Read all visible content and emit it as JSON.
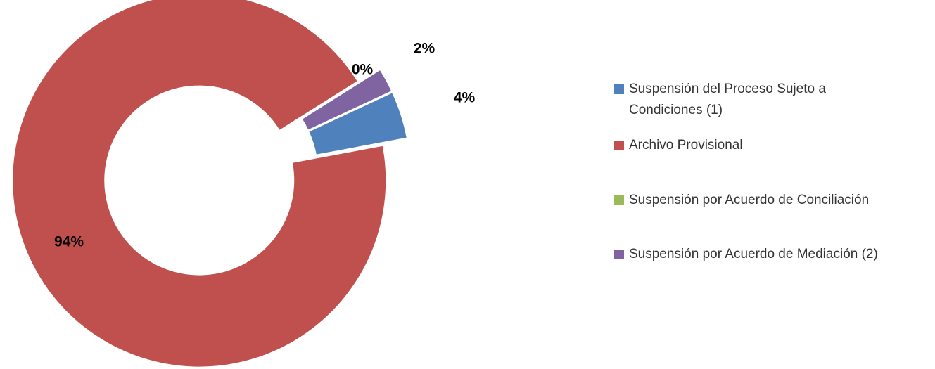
{
  "chart_data": {
    "type": "donut",
    "categories": [
      "Suspensión del Proceso Sujeto a Condiciones (1)",
      "Archivo Provisional",
      "Suspensión por Acuerdo de Conciliación",
      "Suspensión por Acuerdo de Mediación (2)"
    ],
    "values": [
      4,
      94,
      0,
      2
    ],
    "value_labels": [
      "4%",
      "94%",
      "0%",
      "2%"
    ],
    "colors": [
      "#4f81bd",
      "#c0504d",
      "#9bbb59",
      "#8064a2"
    ],
    "legend": "right"
  }
}
